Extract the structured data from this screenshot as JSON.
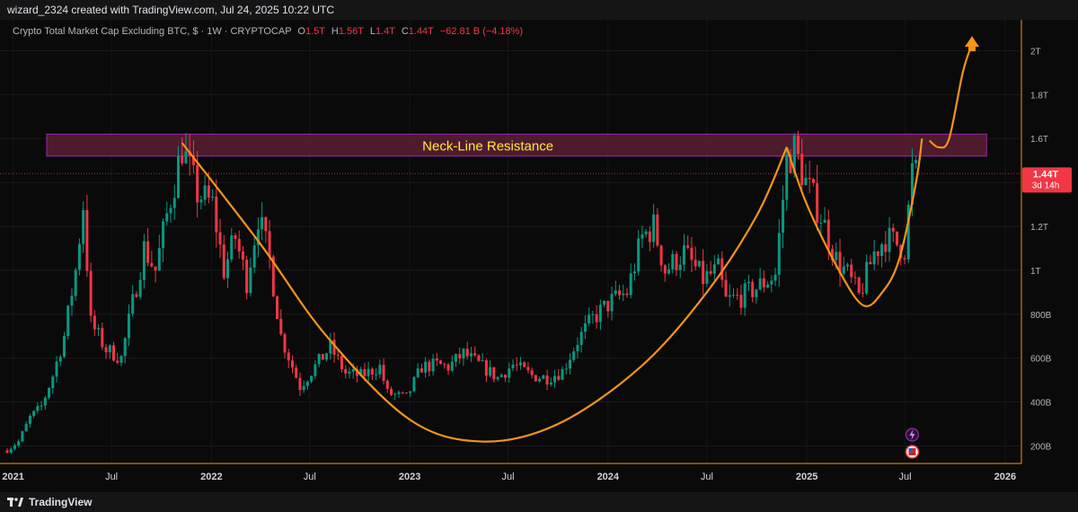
{
  "header": {
    "credit": "wizard_2324 created with TradingView.com, Jul 24, 2025 10:22 UTC"
  },
  "info": {
    "symbol": "Crypto Total Market Cap Excluding BTC, $ · 1W · CRYPTOCAP",
    "o_label": "O",
    "o_value": "1.5T",
    "h_label": "H",
    "h_value": "1.56T",
    "l_label": "L",
    "l_value": "1.4T",
    "c_label": "C",
    "c_value": "1.44T",
    "change": "−62.81 B (−4.18%)"
  },
  "footer": {
    "brand": "TradingView"
  },
  "colors": {
    "up": "#089981",
    "down": "#f23645",
    "curve": "#f7931a",
    "zone_fill": "#5a1f34",
    "zone_border": "#9c27b0",
    "zone_text": "#ffeb3b",
    "price_tag": "#f23645",
    "axis_border": "#f7931a"
  },
  "icons": [
    "lightning-icon",
    "us-flag-icon"
  ],
  "chart_data": {
    "type": "candlestick",
    "title": "Crypto Total Market Cap Excluding BTC",
    "unit": "USD",
    "interval": "1W",
    "log_scale": false,
    "x_range": [
      "2020-12-21",
      "2026-01-31"
    ],
    "ylim": [
      120,
      2100
    ],
    "y_unit": "B",
    "x_ticks": [
      {
        "date": "2021-01-01",
        "label": "2021"
      },
      {
        "date": "2021-07-01",
        "label": "Jul"
      },
      {
        "date": "2022-01-01",
        "label": "2022"
      },
      {
        "date": "2022-07-01",
        "label": "Jul"
      },
      {
        "date": "2023-01-01",
        "label": "2023"
      },
      {
        "date": "2023-07-01",
        "label": "Jul"
      },
      {
        "date": "2024-01-01",
        "label": "2024"
      },
      {
        "date": "2024-07-01",
        "label": "Jul"
      },
      {
        "date": "2025-01-01",
        "label": "2025"
      },
      {
        "date": "2025-07-01",
        "label": "Jul"
      },
      {
        "date": "2026-01-01",
        "label": "2026"
      }
    ],
    "y_ticks": [
      {
        "value": 200,
        "label": "200B"
      },
      {
        "value": 400,
        "label": "400B"
      },
      {
        "value": 600,
        "label": "600B"
      },
      {
        "value": 800,
        "label": "800B"
      },
      {
        "value": 1000,
        "label": "1T"
      },
      {
        "value": 1200,
        "label": "1.2T"
      },
      {
        "value": 1400,
        "label": "1.4T"
      },
      {
        "value": 1600,
        "label": "1.6T"
      },
      {
        "value": 1800,
        "label": "1.8T"
      },
      {
        "value": 2000,
        "label": "2T"
      }
    ],
    "last_price": {
      "value": 1440,
      "label": "1.44T",
      "countdown": "3d 14h"
    },
    "close_path": [
      [
        "2020-12-21",
        180
      ],
      [
        "2021-01-11",
        220
      ],
      [
        "2021-02-01",
        330
      ],
      [
        "2021-02-22",
        380
      ],
      [
        "2021-03-15",
        520
      ],
      [
        "2021-04-05",
        700
      ],
      [
        "2021-04-26",
        1000
      ],
      [
        "2021-05-10",
        1300
      ],
      [
        "2021-05-24",
        760
      ],
      [
        "2021-06-21",
        640
      ],
      [
        "2021-07-19",
        600
      ],
      [
        "2021-08-09",
        850
      ],
      [
        "2021-08-30",
        1100
      ],
      [
        "2021-09-20",
        1000
      ],
      [
        "2021-10-11",
        1250
      ],
      [
        "2021-11-08",
        1560
      ],
      [
        "2021-12-06",
        1350
      ],
      [
        "2022-01-03",
        1300
      ],
      [
        "2022-01-24",
        1000
      ],
      [
        "2022-02-14",
        1150
      ],
      [
        "2022-03-07",
        950
      ],
      [
        "2022-03-28",
        1250
      ],
      [
        "2022-04-18",
        1050
      ],
      [
        "2022-05-09",
        700
      ],
      [
        "2022-06-13",
        470
      ],
      [
        "2022-07-04",
        540
      ],
      [
        "2022-08-08",
        650
      ],
      [
        "2022-09-05",
        530
      ],
      [
        "2022-10-03",
        520
      ],
      [
        "2022-11-07",
        560
      ],
      [
        "2022-11-21",
        440
      ],
      [
        "2022-12-26",
        420
      ],
      [
        "2023-01-23",
        560
      ],
      [
        "2023-02-20",
        570
      ],
      [
        "2023-03-13",
        560
      ],
      [
        "2023-04-10",
        620
      ],
      [
        "2023-05-15",
        560
      ],
      [
        "2023-06-12",
        510
      ],
      [
        "2023-07-10",
        570
      ],
      [
        "2023-08-14",
        520
      ],
      [
        "2023-09-11",
        510
      ],
      [
        "2023-10-09",
        540
      ],
      [
        "2023-11-06",
        680
      ],
      [
        "2023-12-04",
        780
      ],
      [
        "2024-01-08",
        860
      ],
      [
        "2024-02-05",
        900
      ],
      [
        "2024-03-04",
        1150
      ],
      [
        "2024-03-25",
        1200
      ],
      [
        "2024-04-15",
        1000
      ],
      [
        "2024-05-20",
        1080
      ],
      [
        "2024-06-24",
        960
      ],
      [
        "2024-07-22",
        1000
      ],
      [
        "2024-08-05",
        860
      ],
      [
        "2024-09-02",
        880
      ],
      [
        "2024-09-30",
        920
      ],
      [
        "2024-11-04",
        980
      ],
      [
        "2024-11-25",
        1500
      ],
      [
        "2024-12-09",
        1550
      ],
      [
        "2024-12-30",
        1400
      ],
      [
        "2025-01-27",
        1250
      ],
      [
        "2025-02-24",
        1050
      ],
      [
        "2025-03-17",
        980
      ],
      [
        "2025-04-07",
        880
      ],
      [
        "2025-05-05",
        1080
      ],
      [
        "2025-05-26",
        1150
      ],
      [
        "2025-06-16",
        1120
      ],
      [
        "2025-06-30",
        1100
      ],
      [
        "2025-07-14",
        1450
      ],
      [
        "2025-07-21",
        1440
      ]
    ],
    "annotations": [
      {
        "type": "zone",
        "label": "Neck-Line Resistance",
        "from": "2020-12-21",
        "to": "2025-12-31",
        "y_low": 1520,
        "y_high": 1620
      },
      {
        "type": "curve",
        "label": "cup",
        "points": [
          [
            "2021-11-08",
            1580
          ],
          [
            "2022-04-01",
            1120
          ],
          [
            "2022-08-01",
            700
          ],
          [
            "2023-01-01",
            320
          ],
          [
            "2023-05-15",
            220
          ],
          [
            "2023-10-01",
            300
          ],
          [
            "2024-03-01",
            560
          ],
          [
            "2024-07-01",
            900
          ],
          [
            "2024-10-01",
            1250
          ],
          [
            "2024-11-25",
            1560
          ]
        ]
      },
      {
        "type": "curve",
        "label": "handle",
        "points": [
          [
            "2024-11-25",
            1560
          ],
          [
            "2025-01-01",
            1300
          ],
          [
            "2025-03-01",
            1000
          ],
          [
            "2025-04-15",
            840
          ],
          [
            "2025-05-20",
            900
          ],
          [
            "2025-06-20",
            1050
          ],
          [
            "2025-07-21",
            1400
          ],
          [
            "2025-08-01",
            1600
          ]
        ]
      },
      {
        "type": "arrow",
        "label": "projection",
        "points": [
          [
            "2025-08-15",
            1590
          ],
          [
            "2025-09-01",
            1560
          ],
          [
            "2025-09-20",
            1600
          ],
          [
            "2025-10-15",
            1900
          ],
          [
            "2025-11-01",
            2030
          ]
        ]
      }
    ]
  }
}
